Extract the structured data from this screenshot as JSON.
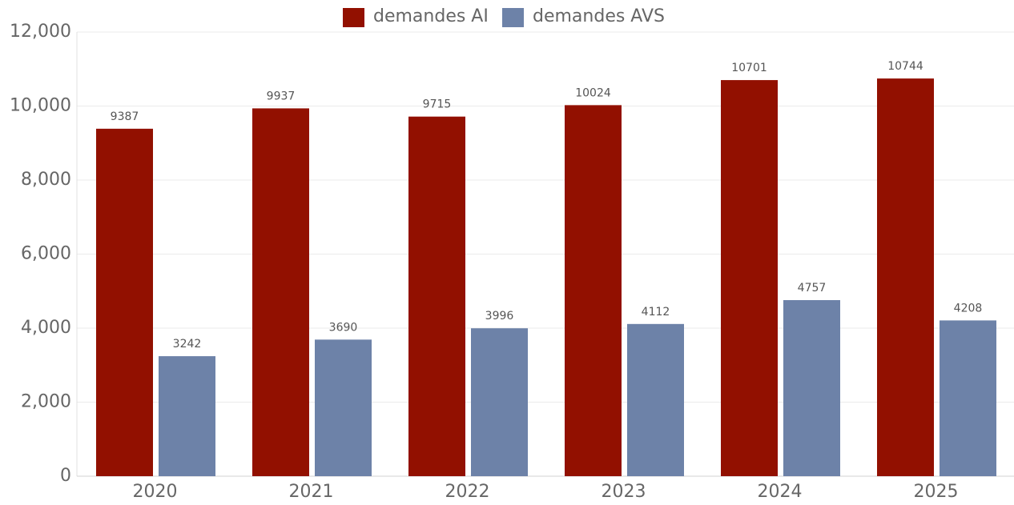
{
  "chart_data": {
    "type": "bar",
    "categories": [
      "2020",
      "2021",
      "2022",
      "2023",
      "2024",
      "2025"
    ],
    "series": [
      {
        "name": "demandes AI",
        "color": "#921000",
        "values": [
          9387,
          9937,
          9715,
          10024,
          10701,
          10744
        ]
      },
      {
        "name": "demandes AVS",
        "color": "#6d82a8",
        "values": [
          3242,
          3690,
          3996,
          4112,
          4757,
          4208
        ]
      }
    ],
    "ylim": [
      0,
      12000
    ],
    "yticks": [
      0,
      {
        "value": 2000,
        "label": "2,000"
      },
      {
        "value": 4000,
        "label": "4,000"
      },
      {
        "value": 6000,
        "label": "6,000"
      },
      {
        "value": 8000,
        "label": "8,000"
      },
      {
        "value": 10000,
        "label": "10,000"
      },
      {
        "value": 12000,
        "label": "12,000"
      }
    ],
    "grid": true
  }
}
